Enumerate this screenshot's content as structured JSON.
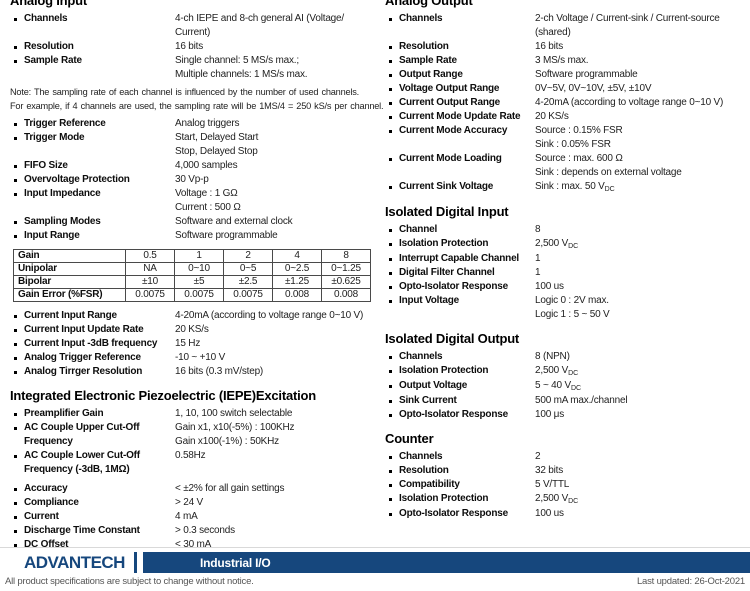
{
  "columns": {
    "left": {
      "sections": [
        {
          "title": "Analog Input",
          "items": [
            {
              "label": [
                "Channels"
              ],
              "values": [
                "4-ch IEPE and 8-ch general AI (Voltage/",
                "Current)"
              ]
            },
            {
              "label": [
                "Resolution"
              ],
              "values": [
                "16 bits"
              ]
            },
            {
              "label": [
                "Sample Rate"
              ],
              "values": [
                "Single channel: 5 MS/s max.;",
                "Multiple channels: 1 MS/s max."
              ]
            },
            {
              "note": [
                "Note: The sampling rate of each channel is influenced by the number of used channels.",
                "For example, if 4 channels are used, the sampling rate will be 1MS/4 = 250 kS/s per channel."
              ]
            },
            {
              "label": [
                "Trigger Reference"
              ],
              "values": [
                "Analog triggers"
              ]
            },
            {
              "label": [
                "Trigger Mode"
              ],
              "values": [
                "Start, Delayed Start",
                "Stop, Delayed Stop"
              ]
            },
            {
              "label": [
                "FIFO Size"
              ],
              "values": [
                "4,000 samples"
              ]
            },
            {
              "label": [
                "Overvoltage Protection"
              ],
              "values": [
                "30 Vp-p"
              ]
            },
            {
              "label": [
                "Input Impedance"
              ],
              "values": [
                "Voltage : 1 GΩ",
                "Current : 500 Ω"
              ]
            },
            {
              "label": [
                "Sampling Modes"
              ],
              "values": [
                "Software and external clock"
              ]
            },
            {
              "label": [
                "Input Range"
              ],
              "values": [
                "Software programmable"
              ]
            },
            {
              "table": [
                [
                  "Gain",
                  "0.5",
                  "1",
                  "2",
                  "4",
                  "8"
                ],
                [
                  "Unipolar",
                  "NA",
                  "0~10",
                  "0~5",
                  "0~2.5",
                  "0~1.25"
                ],
                [
                  "Bipolar",
                  "±10",
                  "±5",
                  "±2.5",
                  "±1.25",
                  "±0.625"
                ],
                [
                  "Gain Error (%FSR)",
                  "0.0075",
                  "0.0075",
                  "0.0075",
                  "0.008",
                  "0.008"
                ]
              ]
            },
            {
              "label": [
                "Current Input Range"
              ],
              "values": [
                "4-20mA (according to voltage range 0~10 V)"
              ]
            },
            {
              "label": [
                "Current Input Update Rate"
              ],
              "values": [
                "20 KS/s"
              ]
            },
            {
              "label": [
                "Current Input -3dB frequency"
              ],
              "values": [
                "15 Hz"
              ]
            },
            {
              "label": [
                "Analog Trigger Reference"
              ],
              "values": [
                "-10 ~ +10 V"
              ]
            },
            {
              "label": [
                "Analog Tirrger Resolution"
              ],
              "values": [
                "16 bits (0.3 mV/step)"
              ]
            }
          ]
        },
        {
          "title": "Integrated Electronic Piezoelectric (IEPE)Excitation",
          "items": [
            {
              "label": [
                "Preamplifier Gain"
              ],
              "values": [
                "1, 10, 100 switch selectable"
              ]
            },
            {
              "label": [
                "AC Couple Upper Cut-Off",
                "Frequency"
              ],
              "values": [
                "Gain x1, x10(-5%) : 100KHz",
                "Gain x100(-1%) : 50KHz"
              ]
            },
            {
              "label": [
                "AC Couple Lower Cut-Off",
                "Frequency (-3dB, 1MΩ)"
              ],
              "values": [
                "0.58Hz"
              ]
            },
            {
              "gap": 5
            },
            {
              "label": [
                "Accuracy"
              ],
              "values": [
                "< ±2% for all gain settings"
              ]
            },
            {
              "label": [
                "Compliance"
              ],
              "values": [
                "> 24 V"
              ]
            },
            {
              "label": [
                "Current"
              ],
              "values": [
                "4 mA"
              ]
            },
            {
              "label": [
                "Discharge Time Constant"
              ],
              "values": [
                "> 0.3 seconds"
              ]
            },
            {
              "label": [
                "DC Offset"
              ],
              "values": [
                "< 30 mA"
              ]
            }
          ]
        }
      ]
    },
    "right": {
      "sections": [
        {
          "title": "Analog Output",
          "items": [
            {
              "label": [
                "Channels"
              ],
              "values": [
                "2-ch Voltage / Current-sink / Current-source",
                "(shared)"
              ]
            },
            {
              "label": [
                "Resolution"
              ],
              "values": [
                "16 bits"
              ]
            },
            {
              "label": [
                "Sample Rate"
              ],
              "values": [
                "3 MS/s max."
              ]
            },
            {
              "label": [
                "Output Range"
              ],
              "values": [
                "Software programmable"
              ]
            },
            {
              "label": [
                "Voltage Output Range"
              ],
              "values": [
                "0V~5V, 0V~10V, ±5V, ±10V"
              ]
            },
            {
              "label": [
                "Current Output Range"
              ],
              "values": [
                "4-20mA (according to voltage range 0~10 V)"
              ]
            },
            {
              "label": [
                "Current Mode Update Rate"
              ],
              "values": [
                "20 KS/s"
              ]
            },
            {
              "label": [
                "Current Mode Accuracy"
              ],
              "values": [
                "Source : 0.15% FSR",
                "Sink : 0.05% FSR"
              ]
            },
            {
              "label": [
                "Current Mode Loading"
              ],
              "values": [
                "Source : max. 600 Ω",
                "Sink : depends on external voltage"
              ]
            },
            {
              "label": [
                "Current Sink Voltage"
              ],
              "values": [
                "Sink : max. 50 V{DC}"
              ]
            }
          ]
        },
        {
          "title": "Isolated Digital Input",
          "items": [
            {
              "label": [
                "Channel"
              ],
              "values": [
                "8"
              ]
            },
            {
              "label": [
                "Isolation Protection"
              ],
              "values": [
                "2,500 V{DC}"
              ]
            },
            {
              "label": [
                "Interrupt Capable Channel"
              ],
              "values": [
                "1"
              ]
            },
            {
              "label": [
                "Digital Filter Channel"
              ],
              "values": [
                "1"
              ]
            },
            {
              "label": [
                "Opto-Isolator Response"
              ],
              "values": [
                "100 us"
              ]
            },
            {
              "label": [
                "Input Voltage"
              ],
              "values": [
                "Logic 0 : 2V max.",
                "Logic 1 : 5 ~ 50 V"
              ]
            }
          ]
        },
        {
          "title": "Isolated Digital Output",
          "items": [
            {
              "label": [
                "Channels"
              ],
              "values": [
                "8 (NPN)"
              ]
            },
            {
              "label": [
                "Isolation Protection"
              ],
              "values": [
                "2,500 V{DC}"
              ]
            },
            {
              "label": [
                "Output Voltage"
              ],
              "values": [
                "5 ~ 40 V{DC}"
              ]
            },
            {
              "label": [
                "Sink Current"
              ],
              "values": [
                "500 mA max./channel"
              ]
            },
            {
              "label": [
                "Opto-Isolator Response"
              ],
              "values": [
                "100 μs"
              ]
            }
          ]
        },
        {
          "title": "Counter",
          "items": [
            {
              "label": [
                "Channels"
              ],
              "values": [
                "2"
              ]
            },
            {
              "label": [
                "Resolution"
              ],
              "values": [
                "32 bits"
              ]
            },
            {
              "label": [
                "Compatibility"
              ],
              "values": [
                "5 V/TTL"
              ]
            },
            {
              "label": [
                "Isolation Protection"
              ],
              "values": [
                "2,500 V{DC}"
              ]
            },
            {
              "label": [
                "Opto-Isolator Response"
              ],
              "values": [
                "100 us"
              ]
            }
          ]
        }
      ]
    }
  },
  "footer": {
    "logo": "ADVANTECH",
    "category": "Industrial I/O",
    "disclaimer": "All product specifications are subject to change without notice.",
    "last_updated": "Last updated: 26-Oct-2021",
    "brand_color": "#16477d"
  }
}
